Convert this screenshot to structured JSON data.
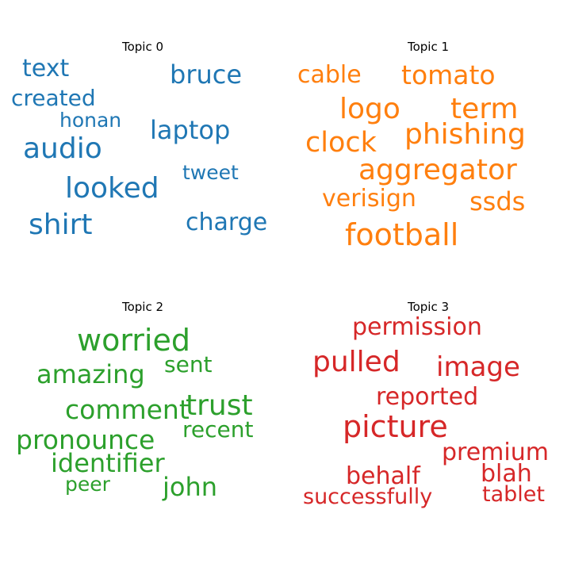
{
  "chart_data": [
    {
      "type": "wordcloud",
      "title": "Topic 0",
      "color": "#1f77b4",
      "words": [
        {
          "text": "text",
          "weight": 0.78
        },
        {
          "text": "bruce",
          "weight": 0.84
        },
        {
          "text": "created",
          "weight": 0.74
        },
        {
          "text": "honan",
          "weight": 0.66
        },
        {
          "text": "audio",
          "weight": 0.95
        },
        {
          "text": "laptop",
          "weight": 0.84
        },
        {
          "text": "tweet",
          "weight": 0.66
        },
        {
          "text": "looked",
          "weight": 0.95
        },
        {
          "text": "shirt",
          "weight": 0.95
        },
        {
          "text": "charge",
          "weight": 0.8
        }
      ]
    },
    {
      "type": "wordcloud",
      "title": "Topic 1",
      "color": "#ff7f0e",
      "words": [
        {
          "text": "cable",
          "weight": 0.8
        },
        {
          "text": "tomato",
          "weight": 0.86
        },
        {
          "text": "logo",
          "weight": 0.95
        },
        {
          "text": "term",
          "weight": 0.95
        },
        {
          "text": "clock",
          "weight": 0.92
        },
        {
          "text": "phishing",
          "weight": 0.95
        },
        {
          "text": "aggregator",
          "weight": 0.95
        },
        {
          "text": "verisign",
          "weight": 0.8
        },
        {
          "text": "ssds",
          "weight": 0.84
        },
        {
          "text": "football",
          "weight": 1.0
        }
      ]
    },
    {
      "type": "wordcloud",
      "title": "Topic 2",
      "color": "#2ca02c",
      "words": [
        {
          "text": "worried",
          "weight": 1.0
        },
        {
          "text": "amazing",
          "weight": 0.84
        },
        {
          "text": "sent",
          "weight": 0.74
        },
        {
          "text": "comment",
          "weight": 0.88
        },
        {
          "text": "trust",
          "weight": 0.95
        },
        {
          "text": "pronounce",
          "weight": 0.88
        },
        {
          "text": "recent",
          "weight": 0.74
        },
        {
          "text": "identifier",
          "weight": 0.84
        },
        {
          "text": "peer",
          "weight": 0.66
        },
        {
          "text": "john",
          "weight": 0.84
        }
      ]
    },
    {
      "type": "wordcloud",
      "title": "Topic 3",
      "color": "#d62728",
      "words": [
        {
          "text": "permission",
          "weight": 0.8
        },
        {
          "text": "pulled",
          "weight": 0.95
        },
        {
          "text": "image",
          "weight": 0.9
        },
        {
          "text": "reported",
          "weight": 0.8
        },
        {
          "text": "picture",
          "weight": 1.0
        },
        {
          "text": "premium",
          "weight": 0.8
        },
        {
          "text": "behalf",
          "weight": 0.8
        },
        {
          "text": "blah",
          "weight": 0.8
        },
        {
          "text": "successfully",
          "weight": 0.7
        },
        {
          "text": "tablet",
          "weight": 0.7
        }
      ]
    }
  ]
}
